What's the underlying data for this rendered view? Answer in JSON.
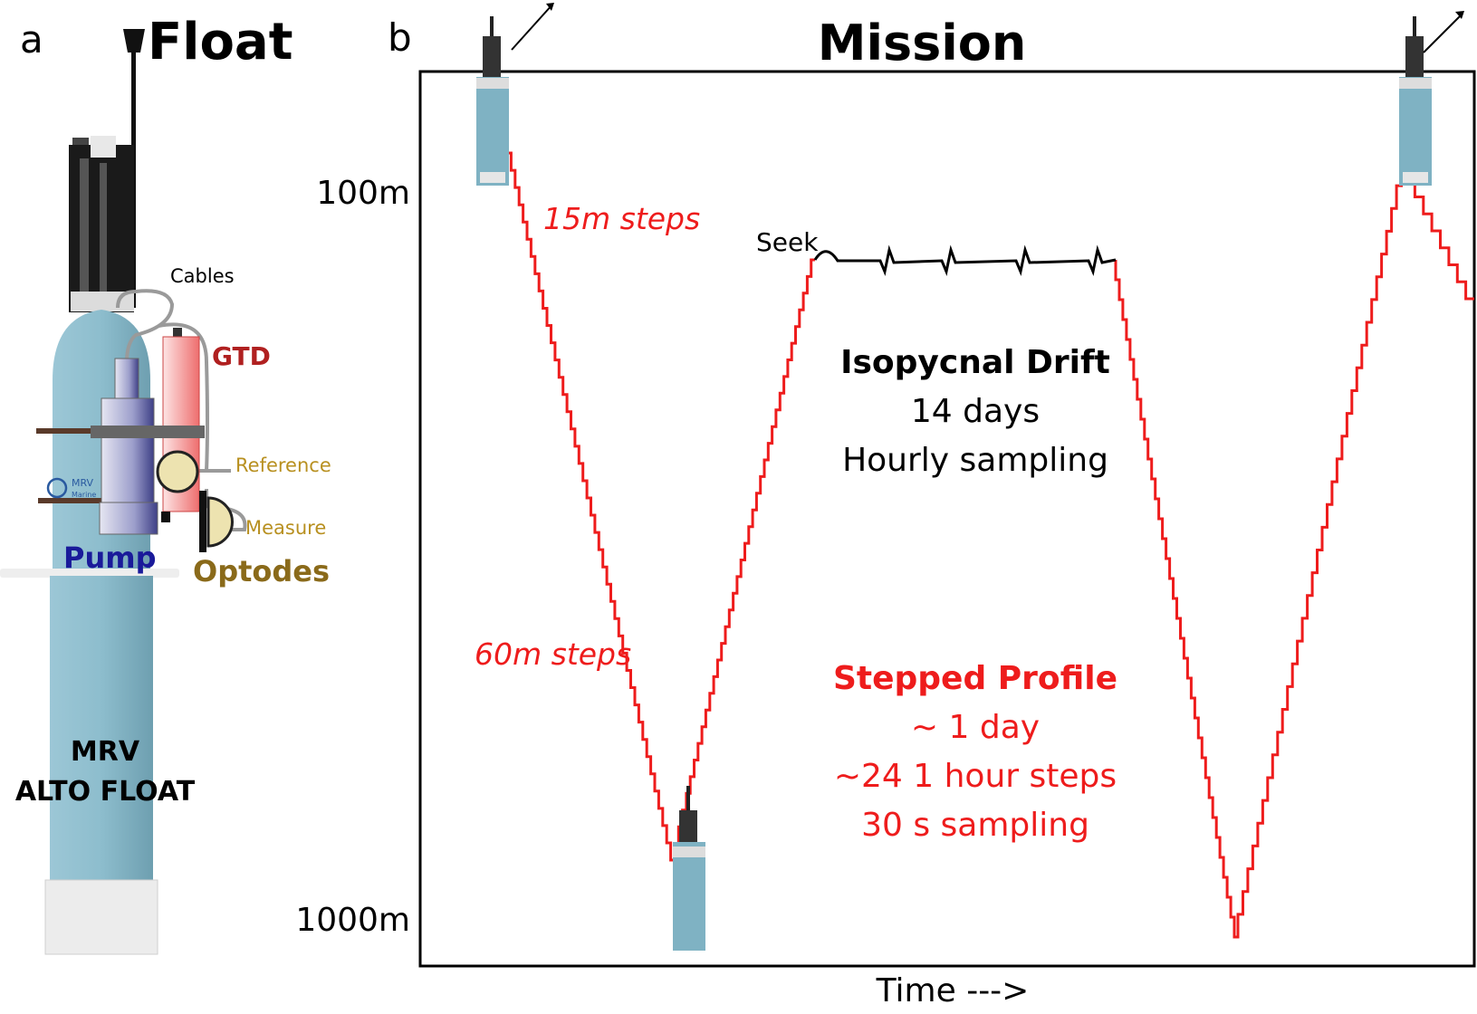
{
  "panel_a": {
    "letter": "a",
    "title": "Float",
    "labels": {
      "cables": "Cables",
      "gtd": "GTD",
      "reference": "Reference",
      "measure": "Measure",
      "pump": "Pump",
      "optodes": "Optodes",
      "logo": "MRV",
      "logo_sub": "Marine",
      "float_name_line1": "MRV",
      "float_name_line2": "ALTO FLOAT"
    },
    "colors": {
      "hull": "#8fbfcf",
      "pump": "#8d8fc4",
      "gtd": "#f08080",
      "optode": "#ede3b0",
      "cable": "#9a9a9a",
      "gtd_label": "#b02020",
      "pump_label": "#1a1a9a",
      "optode_label": "#8a6a1a",
      "small_label": "#b89020"
    }
  },
  "panel_b": {
    "letter": "b",
    "title": "Mission",
    "y_ticks": [
      "100m",
      "1000m"
    ],
    "x_label": "Time --->",
    "annotations": {
      "steps_15": "15m steps",
      "steps_60": "60m steps",
      "seek": "Seek"
    },
    "drift": {
      "title": "Isopycnal Drift",
      "line1": "14 days",
      "line2": "Hourly sampling"
    },
    "profile": {
      "title": "Stepped Profile",
      "line1": "~ 1 day",
      "line2": "~24 1 hour steps",
      "line3": "30 s sampling"
    },
    "colors": {
      "profile": "#ee1c1c",
      "drift": "#000000"
    }
  }
}
